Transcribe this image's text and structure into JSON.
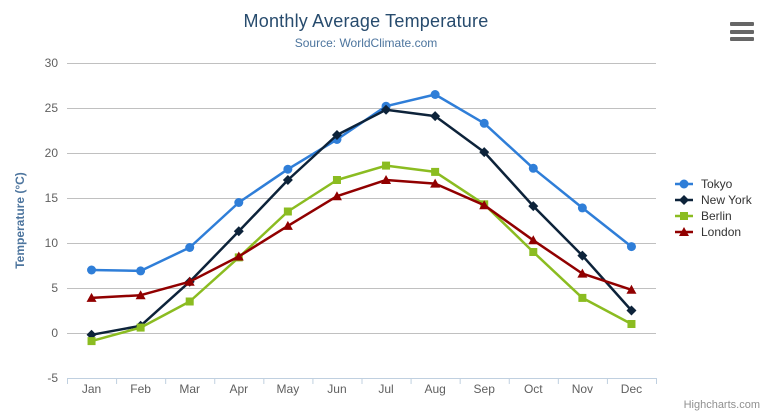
{
  "chart_data": {
    "type": "line",
    "title": "Monthly Average Temperature",
    "subtitle": "Source: WorldClimate.com",
    "xlabel": "",
    "ylabel": "Temperature (°C)",
    "categories": [
      "Jan",
      "Feb",
      "Mar",
      "Apr",
      "May",
      "Jun",
      "Jul",
      "Aug",
      "Sep",
      "Oct",
      "Nov",
      "Dec"
    ],
    "ylim": [
      -5,
      30
    ],
    "yticks": [
      30,
      25,
      20,
      15,
      10,
      5,
      0,
      -5
    ],
    "grid": "horizontal",
    "legend_position": "right",
    "series": [
      {
        "name": "Tokyo",
        "color": "#2f7ed8",
        "marker": "circle",
        "values": [
          7.0,
          6.9,
          9.5,
          14.5,
          18.2,
          21.5,
          25.2,
          26.5,
          23.3,
          18.3,
          13.9,
          9.6
        ]
      },
      {
        "name": "New York",
        "color": "#0d233a",
        "marker": "diamond",
        "values": [
          -0.2,
          0.8,
          5.7,
          11.3,
          17.0,
          22.0,
          24.8,
          24.1,
          20.1,
          14.1,
          8.6,
          2.5
        ]
      },
      {
        "name": "Berlin",
        "color": "#8bbc21",
        "marker": "square",
        "values": [
          -0.9,
          0.6,
          3.5,
          8.4,
          13.5,
          17.0,
          18.6,
          17.9,
          14.3,
          9.0,
          3.9,
          1.0
        ]
      },
      {
        "name": "London",
        "color": "#910000",
        "marker": "triangle",
        "values": [
          3.9,
          4.2,
          5.7,
          8.5,
          11.9,
          15.2,
          17.0,
          16.6,
          14.2,
          10.3,
          6.6,
          4.8
        ]
      }
    ]
  },
  "credits": "Highcharts.com",
  "export_menu": {
    "icon": "hamburger-icon"
  },
  "colors": {
    "title": "#274b6d",
    "subtitle": "#4d759e",
    "axis_title": "#4d759e",
    "axis_labels": "#606060",
    "gridline": "#c0c0c0",
    "axis_line": "#c0d0e0",
    "legend_text": "#333333",
    "credits_text": "#909090",
    "burger": "#666666"
  }
}
